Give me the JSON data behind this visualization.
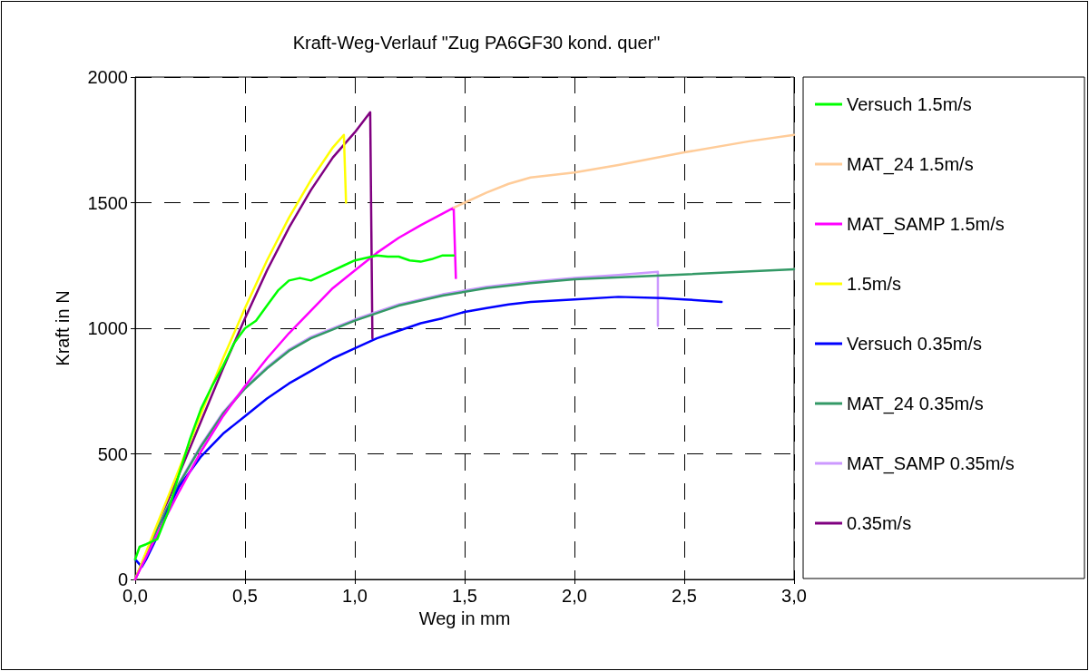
{
  "chart_data": {
    "type": "line",
    "title": "Kraft-Weg-Verlauf \"Zug PA6GF30 kond. quer\"",
    "xlabel": "Weg in mm",
    "ylabel": "Kraft in N",
    "xlim": [
      0,
      3
    ],
    "xticks": [
      {
        "value": 0,
        "label": "0,0"
      },
      {
        "value": 0.5,
        "label": "0,5"
      },
      {
        "value": 1,
        "label": "1,0"
      },
      {
        "value": 1.5,
        "label": "1,5"
      },
      {
        "value": 2,
        "label": "2,0"
      },
      {
        "value": 2.5,
        "label": "2,5"
      },
      {
        "value": 3,
        "label": "3,0"
      }
    ],
    "ylim": [
      0,
      2000
    ],
    "yticks": [
      0,
      500,
      1000,
      1500,
      2000
    ],
    "grid": true,
    "legend": "right",
    "marker": "none",
    "line_style": "solid",
    "series": [
      {
        "name": "Versuch 1.5m/s",
        "color": "#00ff00",
        "x": [
          0,
          0.02,
          0.05,
          0.1,
          0.15,
          0.2,
          0.25,
          0.3,
          0.35,
          0.4,
          0.45,
          0.5,
          0.55,
          0.6,
          0.65,
          0.7,
          0.75,
          0.8,
          0.85,
          0.9,
          0.95,
          1.0,
          1.05,
          1.1,
          1.15,
          1.2,
          1.25,
          1.3,
          1.35,
          1.4,
          1.45
        ],
        "values": [
          80,
          130,
          140,
          160,
          270,
          420,
          560,
          680,
          770,
          850,
          940,
          1000,
          1030,
          1090,
          1150,
          1190,
          1200,
          1190,
          1210,
          1230,
          1250,
          1270,
          1280,
          1290,
          1285,
          1285,
          1270,
          1265,
          1275,
          1290,
          1290
        ]
      },
      {
        "name": "MAT_24 1.5m/s",
        "color": "#ffcc99",
        "x": [
          1.45,
          1.5,
          1.6,
          1.7,
          1.8,
          2.0,
          2.2,
          2.5,
          2.8,
          3.0
        ],
        "values": [
          1480,
          1500,
          1540,
          1575,
          1600,
          1620,
          1650,
          1700,
          1745,
          1770
        ]
      },
      {
        "name": "MAT_SAMP 1.5m/s",
        "color": "#ff00ff",
        "x": [
          0,
          0.1,
          0.2,
          0.3,
          0.4,
          0.5,
          0.6,
          0.7,
          0.8,
          0.9,
          1.0,
          1.1,
          1.2,
          1.3,
          1.45,
          1.46
        ],
        "values": [
          0,
          180,
          350,
          510,
          650,
          770,
          880,
          980,
          1070,
          1160,
          1230,
          1300,
          1360,
          1410,
          1480,
          1200
        ]
      },
      {
        "name": "1.5m/s",
        "color": "#ffff00",
        "x": [
          0,
          0.2,
          0.4,
          0.5,
          0.6,
          0.7,
          0.8,
          0.9,
          0.95,
          0.96
        ],
        "values": [
          0,
          440,
          880,
          1080,
          1270,
          1440,
          1590,
          1720,
          1770,
          1500
        ]
      },
      {
        "name": "Versuch 0.35m/s",
        "color": "#0000ff",
        "x": [
          0,
          0.03,
          0.05,
          0.1,
          0.15,
          0.2,
          0.3,
          0.4,
          0.5,
          0.6,
          0.7,
          0.8,
          0.9,
          1.0,
          1.1,
          1.2,
          1.3,
          1.4,
          1.5,
          1.6,
          1.7,
          1.8,
          2.0,
          2.2,
          2.4,
          2.5,
          2.67
        ],
        "values": [
          80,
          50,
          80,
          170,
          280,
          370,
          490,
          580,
          650,
          720,
          780,
          830,
          880,
          920,
          960,
          990,
          1020,
          1040,
          1065,
          1080,
          1095,
          1105,
          1115,
          1125,
          1120,
          1115,
          1105
        ]
      },
      {
        "name": "MAT_24 0.35m/s",
        "color": "#339966",
        "x": [
          0,
          0.1,
          0.2,
          0.3,
          0.4,
          0.5,
          0.6,
          0.7,
          0.8,
          1.0,
          1.2,
          1.4,
          1.6,
          1.8,
          2.0,
          2.4,
          3.0
        ],
        "values": [
          0,
          200,
          380,
          530,
          660,
          760,
          840,
          910,
          960,
          1030,
          1090,
          1130,
          1160,
          1180,
          1195,
          1210,
          1235
        ]
      },
      {
        "name": "MAT_SAMP 0.35m/s",
        "color": "#cc99ff",
        "x": [
          0,
          0.1,
          0.2,
          0.3,
          0.4,
          0.5,
          0.6,
          0.7,
          0.8,
          1.0,
          1.2,
          1.4,
          1.6,
          1.8,
          2.0,
          2.2,
          2.38,
          2.38
        ],
        "values": [
          0,
          205,
          385,
          535,
          665,
          765,
          845,
          915,
          965,
          1035,
          1095,
          1135,
          1165,
          1185,
          1200,
          1212,
          1225,
          1010
        ]
      },
      {
        "name": "0.35m/s",
        "color": "#800080",
        "x": [
          0,
          0.2,
          0.4,
          0.5,
          0.6,
          0.7,
          0.8,
          0.9,
          1.0,
          1.07,
          1.08
        ],
        "values": [
          0,
          420,
          840,
          1040,
          1230,
          1400,
          1550,
          1680,
          1780,
          1860,
          960
        ]
      }
    ]
  }
}
